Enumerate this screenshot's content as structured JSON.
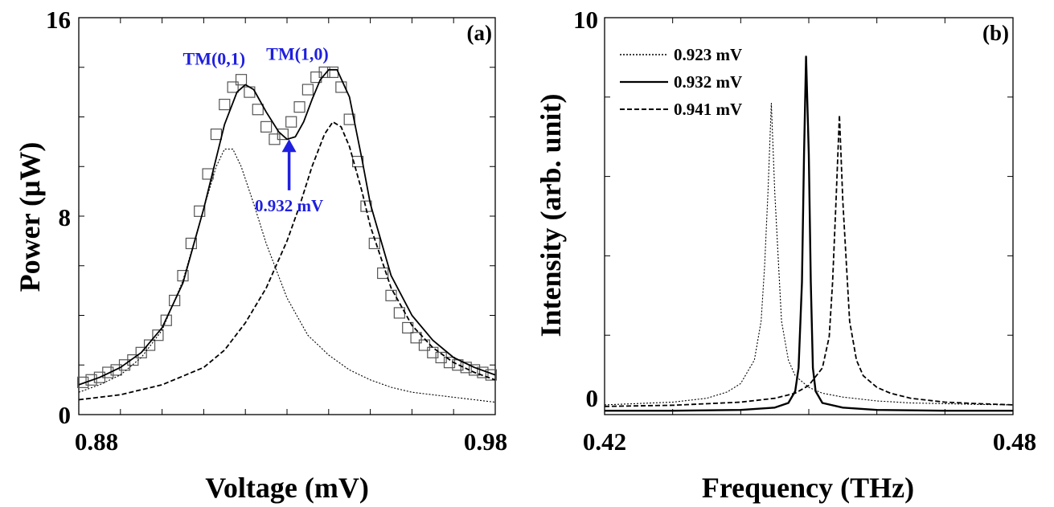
{
  "chart_data": [
    {
      "type": "line",
      "panel_label": "(a)",
      "xlabel": "Voltage (mV)",
      "ylabel": "Power  (μW)",
      "xlim": [
        0.88,
        0.98
      ],
      "ylim": [
        0,
        16
      ],
      "x_tick_labels": [
        "0.88",
        "0.98"
      ],
      "y_tick_labels": [
        "0",
        "8",
        "16"
      ],
      "annotations": [
        {
          "text": "TM(0,1)",
          "x": 0.9125,
          "y": 14.1
        },
        {
          "text": "TM(1,0)",
          "x": 0.9325,
          "y": 14.3
        },
        {
          "text": "0.932 mV",
          "x": 0.9305,
          "y": 8.2,
          "arrow_to": [
            0.9305,
            11.1
          ]
        }
      ],
      "colors": {
        "annotation": "#1f1fe0",
        "line": "#000000"
      },
      "series": [
        {
          "style": "markers-squares",
          "x": [
            0.881,
            0.883,
            0.885,
            0.887,
            0.889,
            0.891,
            0.893,
            0.895,
            0.897,
            0.899,
            0.901,
            0.903,
            0.905,
            0.907,
            0.909,
            0.911,
            0.913,
            0.915,
            0.917,
            0.919,
            0.921,
            0.923,
            0.925,
            0.927,
            0.929,
            0.931,
            0.933,
            0.935,
            0.937,
            0.939,
            0.941,
            0.943,
            0.945,
            0.947,
            0.949,
            0.951,
            0.953,
            0.955,
            0.957,
            0.959,
            0.961,
            0.963,
            0.965,
            0.967,
            0.969,
            0.971,
            0.973,
            0.975,
            0.977,
            0.979
          ],
          "y": [
            1.3,
            1.4,
            1.5,
            1.7,
            1.8,
            2.0,
            2.2,
            2.5,
            2.8,
            3.2,
            3.8,
            4.6,
            5.6,
            6.9,
            8.2,
            9.7,
            11.3,
            12.5,
            13.2,
            13.5,
            13.0,
            12.3,
            11.6,
            11.1,
            11.3,
            11.8,
            12.4,
            13.1,
            13.6,
            13.8,
            13.8,
            13.2,
            11.9,
            10.2,
            8.4,
            6.9,
            5.7,
            4.8,
            4.1,
            3.5,
            3.1,
            2.8,
            2.5,
            2.3,
            2.1,
            2.0,
            1.9,
            1.8,
            1.7,
            1.6
          ]
        },
        {
          "style": "solid",
          "x": [
            0.88,
            0.885,
            0.89,
            0.895,
            0.9,
            0.905,
            0.91,
            0.915,
            0.918,
            0.92,
            0.922,
            0.925,
            0.928,
            0.93,
            0.932,
            0.934,
            0.936,
            0.938,
            0.94,
            0.942,
            0.945,
            0.948,
            0.95,
            0.955,
            0.96,
            0.965,
            0.97,
            0.975,
            0.98
          ],
          "y": [
            1.2,
            1.5,
            1.9,
            2.5,
            3.5,
            5.3,
            8.3,
            11.7,
            13.0,
            13.3,
            13.1,
            12.2,
            11.4,
            11.1,
            11.2,
            11.8,
            12.7,
            13.5,
            13.9,
            13.9,
            12.8,
            10.3,
            8.5,
            5.6,
            4.0,
            3.0,
            2.3,
            1.9,
            1.6
          ]
        },
        {
          "style": "dotted",
          "x": [
            0.88,
            0.885,
            0.89,
            0.895,
            0.9,
            0.905,
            0.91,
            0.913,
            0.915,
            0.917,
            0.919,
            0.922,
            0.925,
            0.93,
            0.935,
            0.94,
            0.945,
            0.95,
            0.955,
            0.96,
            0.965,
            0.97,
            0.975,
            0.98
          ],
          "y": [
            0.9,
            1.2,
            1.6,
            2.3,
            3.4,
            5.4,
            8.3,
            10.0,
            10.7,
            10.7,
            10.0,
            8.5,
            6.9,
            4.7,
            3.2,
            2.4,
            1.8,
            1.4,
            1.1,
            0.9,
            0.8,
            0.7,
            0.6,
            0.5
          ]
        },
        {
          "style": "dashed",
          "x": [
            0.88,
            0.89,
            0.9,
            0.91,
            0.915,
            0.92,
            0.925,
            0.93,
            0.933,
            0.936,
            0.939,
            0.941,
            0.943,
            0.945,
            0.948,
            0.95,
            0.955,
            0.96,
            0.965,
            0.97,
            0.975,
            0.98
          ],
          "y": [
            0.6,
            0.8,
            1.2,
            1.9,
            2.6,
            3.7,
            5.1,
            7.0,
            8.4,
            10.0,
            11.3,
            11.8,
            11.6,
            10.8,
            9.0,
            7.6,
            5.1,
            3.6,
            2.7,
            2.1,
            1.7,
            1.4
          ]
        }
      ]
    },
    {
      "type": "line",
      "panel_label": "(b)",
      "xlabel": "Frequency (THz)",
      "ylabel": "Intensity (arb. unit)",
      "xlim": [
        0.42,
        0.48
      ],
      "ylim": [
        -0.2,
        10
      ],
      "x_tick_labels": [
        "0.42",
        "0.48"
      ],
      "y_tick_labels": [
        "0",
        "10"
      ],
      "legend_position": "top-left",
      "series": [
        {
          "name": "0.923 mV",
          "style": "dotted",
          "x": [
            0.42,
            0.43,
            0.435,
            0.438,
            0.44,
            0.442,
            0.443,
            0.4435,
            0.444,
            0.4445,
            0.445,
            0.446,
            0.447,
            0.448,
            0.45,
            0.452,
            0.455,
            0.46,
            0.465,
            0.47,
            0.475,
            0.48
          ],
          "y": [
            0.05,
            0.12,
            0.22,
            0.38,
            0.6,
            1.2,
            2.2,
            3.6,
            5.5,
            7.8,
            5.5,
            2.2,
            1.2,
            0.8,
            0.5,
            0.35,
            0.25,
            0.15,
            0.1,
            0.08,
            0.06,
            0.05
          ]
        },
        {
          "name": "0.932 mV",
          "style": "solid",
          "x": [
            0.42,
            0.43,
            0.44,
            0.445,
            0.447,
            0.448,
            0.4485,
            0.449,
            0.4493,
            0.4496,
            0.45,
            0.4503,
            0.4506,
            0.451,
            0.452,
            0.455,
            0.46,
            0.47,
            0.48
          ],
          "y": [
            -0.1,
            -0.1,
            -0.08,
            -0.02,
            0.1,
            0.4,
            1.0,
            3.2,
            6.5,
            9.0,
            6.5,
            3.2,
            1.0,
            0.4,
            0.1,
            -0.02,
            -0.08,
            -0.1,
            -0.1
          ],
          "line_width": 2.4
        },
        {
          "name": "0.941 mV",
          "style": "dashed",
          "x": [
            0.42,
            0.43,
            0.44,
            0.445,
            0.448,
            0.45,
            0.452,
            0.453,
            0.4535,
            0.454,
            0.4545,
            0.455,
            0.456,
            0.457,
            0.458,
            0.46,
            0.462,
            0.465,
            0.47,
            0.475,
            0.48
          ],
          "y": [
            0.01,
            0.04,
            0.12,
            0.22,
            0.35,
            0.55,
            1.0,
            1.8,
            3.2,
            5.3,
            7.5,
            5.3,
            2.2,
            1.2,
            0.8,
            0.5,
            0.35,
            0.22,
            0.12,
            0.08,
            0.05
          ]
        }
      ]
    }
  ]
}
